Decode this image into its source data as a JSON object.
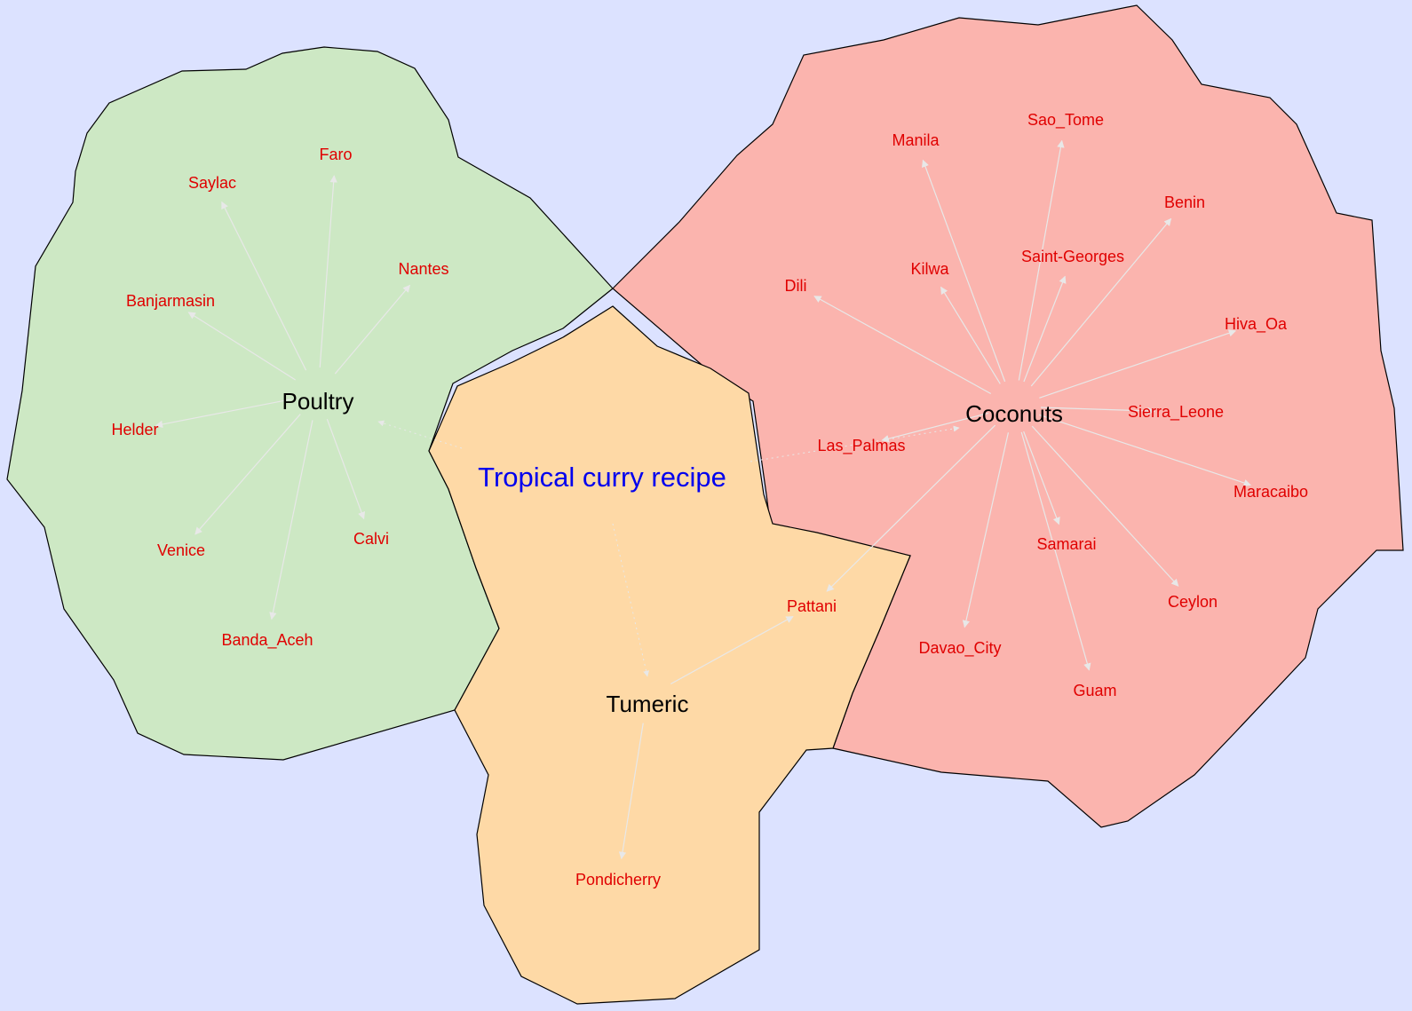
{
  "title": "Tropical curry recipe",
  "colors": {
    "background": "#dce2ff",
    "title": "#0000ee",
    "hub_text": "#000000",
    "leaf_text": "#e00000",
    "edge": "#e8e8e8",
    "region_outline": "#000000",
    "poultry_fill": "#cde8c4",
    "coconuts_fill": "#fbb4ae",
    "tumeric_fill": "#fed9a6"
  },
  "regions": [
    {
      "id": "poultry",
      "hub": "Poultry",
      "leaves": [
        "Saylac",
        "Faro",
        "Nantes",
        "Banjarmasin",
        "Helder",
        "Venice",
        "Calvi",
        "Banda_Aceh"
      ]
    },
    {
      "id": "coconuts",
      "hub": "Coconuts",
      "leaves": [
        "Manila",
        "Sao_Tome",
        "Benin",
        "Kilwa",
        "Saint-Georges",
        "Dili",
        "Hiva_Oa",
        "Sierra_Leone",
        "Las_Palmas",
        "Maracaibo",
        "Samarai",
        "Ceylon",
        "Davao_City",
        "Guam",
        "Pattani"
      ]
    },
    {
      "id": "tumeric",
      "hub": "Tumeric",
      "leaves": [
        "Pondicherry",
        "Pattani"
      ]
    }
  ]
}
